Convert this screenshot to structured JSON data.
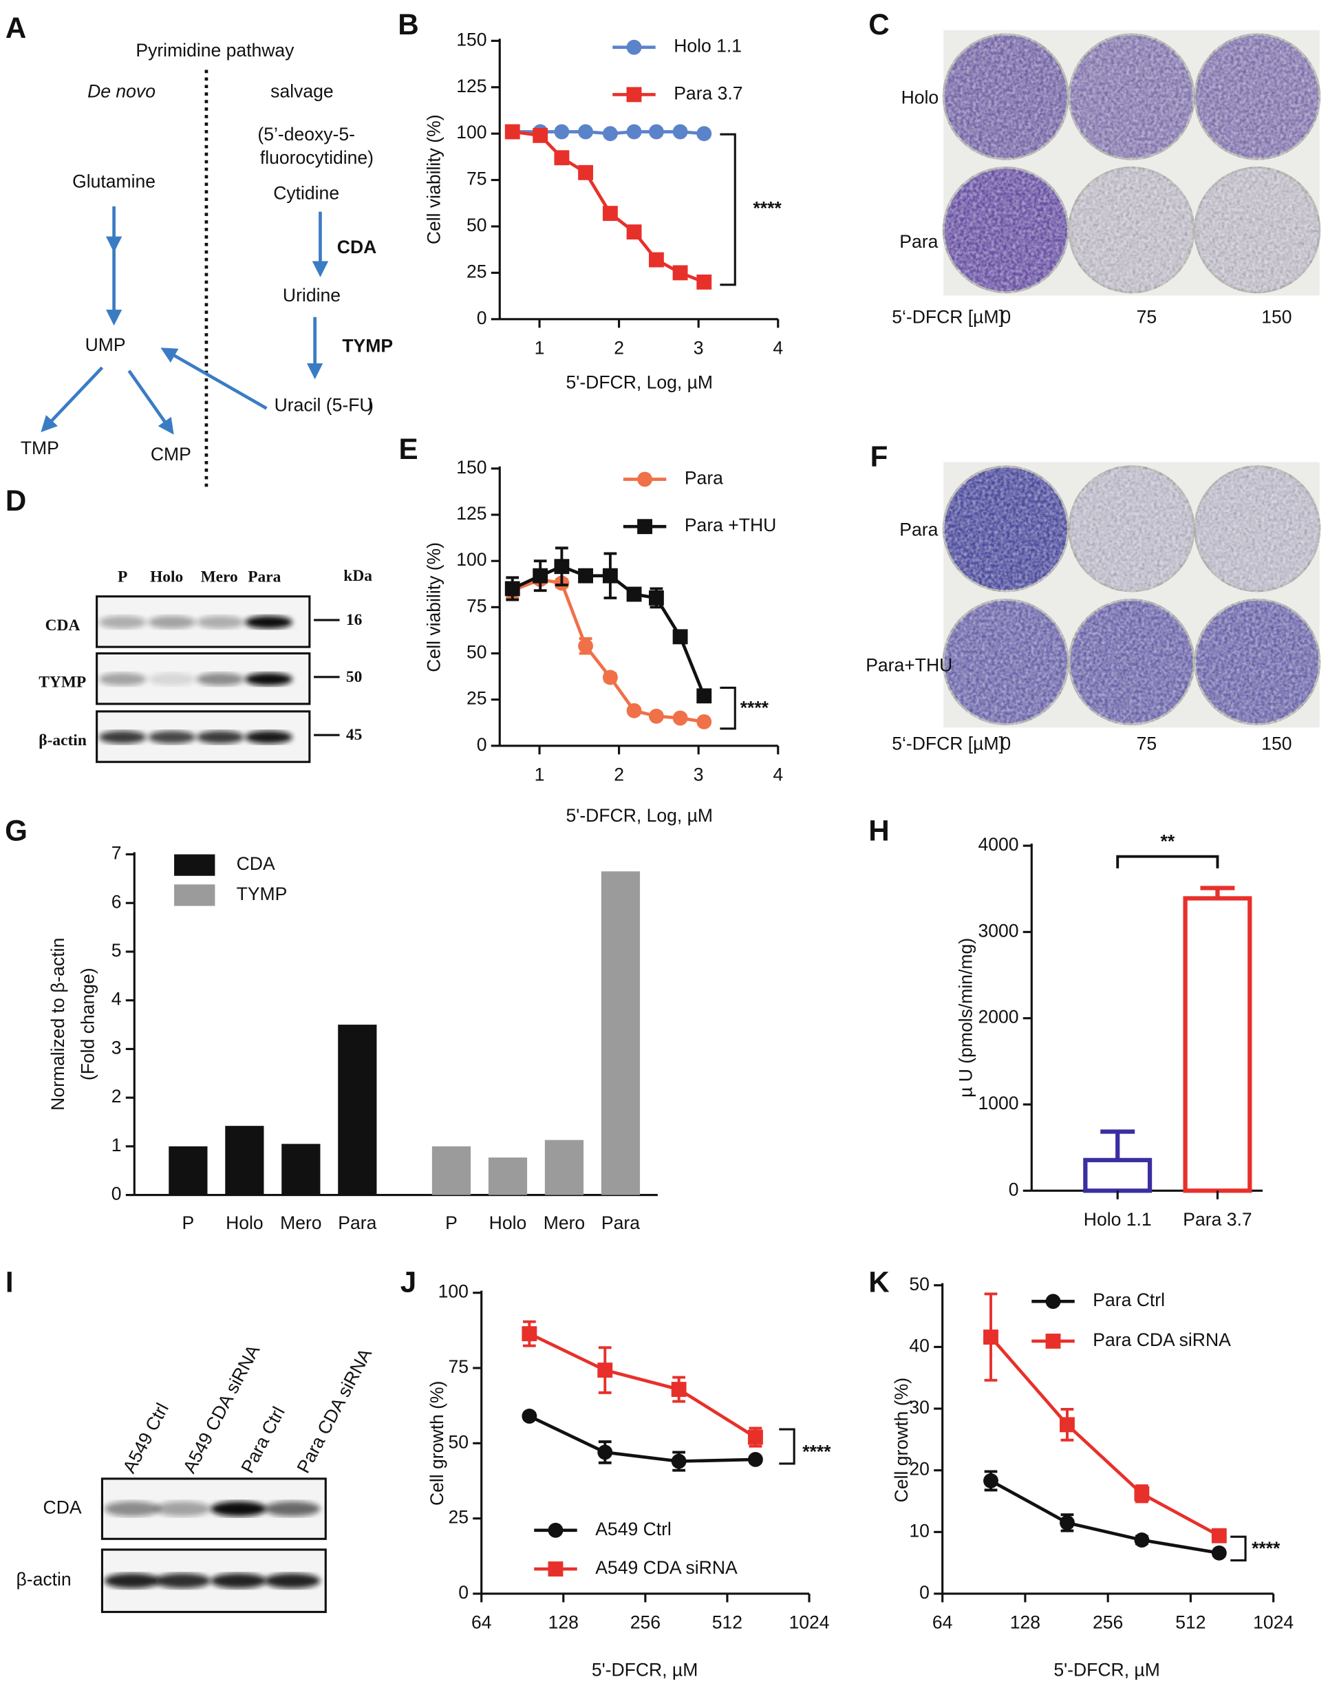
{
  "diagram": {
    "label": "A",
    "texts": [
      "Pyrimidine pathway",
      "De novo",
      "salvage",
      "(5’-deoxy-5-",
      "fluorocytidine",
      ")",
      "Cytidine",
      "CDA",
      "Glutamine",
      "Uridine",
      "TYMP",
      "UMP",
      "Uracil (",
      "5-FU",
      ")",
      "TMP",
      "CMP"
    ]
  },
  "plates_c": {
    "label": "C",
    "rows": [
      "Holo",
      "Para"
    ],
    "axis_label": "5‘-DFCR [µM]",
    "doses": [
      "0",
      "75",
      "150"
    ]
  },
  "plates_f": {
    "label": "F",
    "rows": [
      "Para",
      "Para+THU"
    ],
    "axis_label": "5‘-DFCR [µM]",
    "doses": [
      "0",
      "75",
      "150"
    ]
  },
  "blot_d": {
    "label": "D",
    "lanes": [
      "P",
      "Holo",
      "Mero",
      "Para"
    ],
    "unit": "kDa",
    "proteins": [
      "CDA",
      "TYMP",
      "β-actin"
    ],
    "sizes": [
      "16",
      "50",
      "45"
    ]
  },
  "blot_i": {
    "label": "I",
    "lanes": [
      "A549 Ctrl",
      "A549 CDA siRNA",
      "Para Ctrl",
      "Para CDA siRNA"
    ],
    "proteins": [
      "CDA",
      "β-actin"
    ]
  },
  "chart_data": [
    {
      "type": "line",
      "label": "B",
      "x_label": "5'-DFCR, Log,  µM",
      "y_label": "Cell viability (%)",
      "x": [
        0.66,
        1.01,
        1.28,
        1.58,
        1.89,
        2.19,
        2.47,
        2.77,
        3.07
      ],
      "series": [
        {
          "name": "Holo 1.1",
          "color": "#5b83c9",
          "marker": "circle",
          "values": [
            101,
            101,
            101,
            101,
            100,
            101,
            101,
            101,
            100
          ]
        },
        {
          "name": "Para 3.7",
          "color": "#e8302a",
          "marker": "square",
          "values": [
            101,
            99,
            87,
            79,
            57,
            47,
            32,
            25,
            20
          ]
        }
      ],
      "xlim": [
        0.5,
        4
      ],
      "xticks": [
        1,
        2,
        3,
        4
      ],
      "ylim": [
        0,
        150
      ],
      "yticks": [
        0,
        25,
        50,
        75,
        100,
        125,
        150
      ],
      "annotation": "****"
    },
    {
      "type": "line",
      "label": "E",
      "x_label": "5'-DFCR, Log, µM",
      "y_label": "Cell viability (%)",
      "x": [
        0.66,
        1.01,
        1.28,
        1.58,
        1.89,
        2.19,
        2.47,
        2.77,
        3.07
      ],
      "series": [
        {
          "name": "Para",
          "color": "#f07048",
          "marker": "circle",
          "values": [
            84,
            90,
            88,
            54,
            37,
            19,
            16,
            15,
            13
          ],
          "errors": [
            4,
            2,
            2,
            4,
            2,
            1,
            1,
            1,
            1
          ]
        },
        {
          "name": "Para +THU",
          "color": "#111111",
          "marker": "square",
          "values": [
            85,
            92,
            97,
            92,
            92,
            82,
            80,
            59,
            27
          ],
          "errors": [
            6,
            8,
            10,
            3,
            12,
            3,
            5,
            2,
            2
          ]
        }
      ],
      "xlim": [
        0.5,
        4
      ],
      "xticks": [
        1,
        2,
        3,
        4
      ],
      "ylim": [
        0,
        150
      ],
      "yticks": [
        0,
        25,
        50,
        75,
        100,
        125,
        150
      ],
      "annotation": "****"
    },
    {
      "type": "bar",
      "label": "G",
      "y_label": [
        "Normalized to β-actin",
        "(Fold change)"
      ],
      "categories": [
        "P",
        "Holo",
        "Mero",
        "Para",
        "P",
        "Holo",
        "Mero",
        "Para"
      ],
      "series": [
        {
          "name": "CDA",
          "color": "#111111",
          "values": [
            1,
            1.42,
            1.05,
            3.5,
            null,
            null,
            null,
            null
          ]
        },
        {
          "name": "TYMP",
          "color": "#9b9b9b",
          "values": [
            null,
            null,
            null,
            null,
            1,
            0.77,
            1.13,
            6.65
          ]
        }
      ],
      "ylim": [
        0,
        7
      ],
      "yticks": [
        0,
        1,
        2,
        3,
        4,
        5,
        6,
        7
      ]
    },
    {
      "type": "bar",
      "label": "H",
      "y_label": "µ U (pmols/min/mg)",
      "categories": [
        "Holo 1.1",
        "Para 3.7"
      ],
      "values": [
        355,
        3390
      ],
      "errors": [
        330,
        120
      ],
      "colors": [
        "#3a2fa0",
        "#e8302a"
      ],
      "bar_style": "outline",
      "ylim": [
        0,
        4000
      ],
      "yticks": [
        0,
        1000,
        2000,
        3000,
        4000
      ],
      "annotation": "**"
    },
    {
      "type": "line",
      "label": "J",
      "x_label": "5'-DFCR,  µM",
      "y_label": "Cell growth (%)",
      "x_scale": "log",
      "x": [
        96,
        182,
        340,
        650
      ],
      "series": [
        {
          "name": "A549 Ctrl",
          "color": "#111111",
          "marker": "circle",
          "values": [
            59,
            47,
            44,
            44.6
          ],
          "errors": [
            1,
            3.5,
            3,
            1
          ]
        },
        {
          "name": "A549 CDA siRNA",
          "color": "#e8302a",
          "marker": "square",
          "values": [
            86.4,
            74.3,
            67.9,
            52
          ],
          "errors": [
            4,
            7.5,
            4,
            3
          ]
        }
      ],
      "xlim": [
        64,
        1024
      ],
      "xticks": [
        64,
        128,
        256,
        512,
        1024
      ],
      "ylim": [
        0,
        100
      ],
      "yticks": [
        0,
        25,
        50,
        75,
        100
      ],
      "annotation": "****"
    },
    {
      "type": "line",
      "label": "K",
      "x_label": "5'-DFCR,   µM",
      "y_label": "Cell growth (%)",
      "x_scale": "log",
      "x": [
        96,
        182,
        340,
        650
      ],
      "series": [
        {
          "name": "Para Ctrl",
          "color": "#111111",
          "marker": "circle",
          "values": [
            18.3,
            11.5,
            8.7,
            6.6
          ],
          "errors": [
            1.5,
            1.3,
            0.6,
            0.5
          ]
        },
        {
          "name": "Para CDA siRNA",
          "color": "#e8302a",
          "marker": "square",
          "values": [
            41.6,
            27.4,
            16.2,
            9.4
          ],
          "errors": [
            7,
            2.5,
            1.3,
            0.8
          ]
        }
      ],
      "xlim": [
        64,
        1024
      ],
      "xticks": [
        64,
        128,
        256,
        512,
        1024
      ],
      "ylim": [
        0,
        50
      ],
      "yticks": [
        0,
        10,
        20,
        30,
        40,
        50
      ],
      "annotation": "****"
    }
  ]
}
